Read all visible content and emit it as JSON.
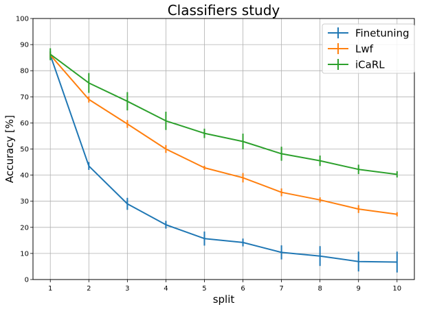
{
  "chart_data": {
    "type": "line",
    "title": "Classifiers study",
    "xlabel": "split",
    "ylabel": "Accuracy [%]",
    "x": [
      1,
      2,
      3,
      4,
      5,
      6,
      7,
      8,
      9,
      10
    ],
    "xticks": [
      "1",
      "2",
      "3",
      "4",
      "5",
      "6",
      "7",
      "8",
      "9",
      "10"
    ],
    "yticks": [
      "0",
      "10",
      "20",
      "30",
      "40",
      "50",
      "60",
      "70",
      "80",
      "90",
      "100"
    ],
    "ylim": [
      0,
      100
    ],
    "grid": true,
    "legend_position": "top-right",
    "series": [
      {
        "name": "Finetuning",
        "color": "#1f77b4",
        "values": [
          86.0,
          43.5,
          29.0,
          21.0,
          15.7,
          14.2,
          10.4,
          9.0,
          6.9,
          6.7
        ],
        "errors": [
          1.5,
          1.5,
          2.3,
          1.5,
          2.7,
          1.5,
          2.7,
          3.8,
          3.8,
          4.0
        ]
      },
      {
        "name": "Lwf",
        "color": "#ff7f0e",
        "values": [
          86.0,
          69.0,
          59.6,
          50.0,
          42.8,
          39.0,
          33.4,
          30.5,
          27.0,
          25.0
        ],
        "errors": [
          1.0,
          1.2,
          1.5,
          1.5,
          0.8,
          1.8,
          1.5,
          1.0,
          1.5,
          0.8
        ]
      },
      {
        "name": "iCaRL",
        "color": "#2ca02c",
        "values": [
          86.3,
          75.3,
          68.3,
          60.8,
          56.0,
          52.9,
          48.2,
          45.5,
          42.2,
          40.3
        ],
        "errors": [
          2.3,
          3.8,
          3.5,
          3.5,
          1.8,
          3.0,
          2.7,
          2.0,
          1.8,
          1.2
        ]
      }
    ]
  }
}
